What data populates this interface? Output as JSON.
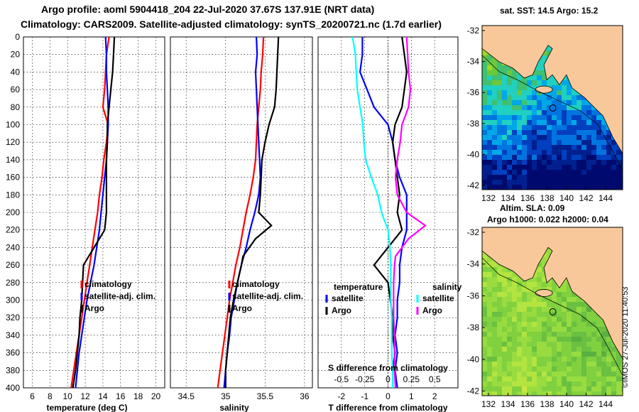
{
  "header": {
    "line1": "Argo profile: aoml 5904418_204 22-Jul-2020 37.67S 137.91E (NRT data)",
    "line2": "Climatology: CARS2009. Satellite-adjusted climatology: synTS_20200721.nc (1.7d earlier)"
  },
  "maps": {
    "sst_title": "sat. SST: 14.5 Argo: 15.2",
    "sla_title1": "Altim. SLA: 0.09",
    "sla_title2": "Argo h1000: 0.022 h2000: 0.04",
    "lon_ticks": [
      "132",
      "134",
      "136",
      "138",
      "140",
      "142",
      "144"
    ],
    "lat_ticks": [
      "-32",
      "-34",
      "-36",
      "-38",
      "-40",
      "-42"
    ],
    "credit": "©IMOS 27-Jul-2020 11:40:53"
  },
  "colors": {
    "climatology": "#ff0000",
    "satellite": "#0000ff",
    "argo": "#000000",
    "sal_satellite": "#00ffff",
    "sal_argo": "#ff00ff",
    "land": "#f9c89a"
  },
  "chart_data": [
    {
      "type": "line",
      "xlabel": "temperature (deg C)",
      "ylabel": "",
      "xlim": [
        5,
        21
      ],
      "ylim": [
        400,
        0
      ],
      "x_ticks": [
        6,
        8,
        10,
        12,
        14,
        16,
        18,
        20
      ],
      "y_ticks": [
        0,
        20,
        40,
        60,
        80,
        100,
        120,
        140,
        160,
        180,
        200,
        220,
        240,
        260,
        280,
        300,
        320,
        340,
        360,
        380,
        400
      ],
      "legend": [
        "climatology",
        "satellite-adj. clim.",
        "Argo"
      ],
      "series": [
        {
          "name": "climatology",
          "depth": [
            0,
            20,
            40,
            60,
            80,
            100,
            120,
            140,
            160,
            180,
            200,
            220,
            240,
            260,
            280,
            300,
            320,
            340,
            360,
            380,
            400
          ],
          "values": [
            14.7,
            14.4,
            14.3,
            14.2,
            14.0,
            14.6,
            14.4,
            14.1,
            13.9,
            13.6,
            13.4,
            13.1,
            12.8,
            12.5,
            12.2,
            11.9,
            11.6,
            11.3,
            11.0,
            10.7,
            10.4
          ]
        },
        {
          "name": "satellite-adj. clim.",
          "depth": [
            0,
            20,
            40,
            60,
            80,
            100,
            120,
            140,
            160,
            180,
            200,
            220,
            240,
            260,
            280,
            300,
            320,
            340,
            360,
            380,
            400
          ],
          "values": [
            14.3,
            14.4,
            14.4,
            14.5,
            14.6,
            14.6,
            14.5,
            14.4,
            14.2,
            14.0,
            13.8,
            13.6,
            13.3,
            13.0,
            12.6,
            12.2,
            11.9,
            11.6,
            11.3,
            11.1,
            10.9
          ]
        },
        {
          "name": "Argo",
          "depth": [
            0,
            20,
            40,
            60,
            80,
            100,
            120,
            140,
            160,
            180,
            200,
            220,
            240,
            250,
            260,
            280,
            300,
            320,
            340,
            360,
            380,
            400
          ],
          "values": [
            15.3,
            15.2,
            15.1,
            14.9,
            14.7,
            14.5,
            14.5,
            14.4,
            14.4,
            14.4,
            14.4,
            14.2,
            13.0,
            12.4,
            11.8,
            11.7,
            11.6,
            11.4,
            11.3,
            11.1,
            10.9,
            10.6
          ]
        }
      ]
    },
    {
      "type": "line",
      "xlabel": "salinity",
      "ylabel": "",
      "xlim": [
        34.3,
        36.1
      ],
      "ylim": [
        400,
        0
      ],
      "x_ticks": [
        34.5,
        35,
        35.5,
        36
      ],
      "x_tick_labels": [
        "34.5",
        "35",
        "35.5",
        "36"
      ],
      "legend": [
        "climatology",
        "satellite-adj. clim.",
        "Argo"
      ],
      "series": [
        {
          "name": "climatology",
          "depth": [
            0,
            20,
            40,
            60,
            80,
            100,
            120,
            140,
            160,
            180,
            200,
            220,
            240,
            260,
            280,
            300,
            320,
            340,
            360,
            380,
            400
          ],
          "values": [
            35.48,
            35.47,
            35.45,
            35.44,
            35.42,
            35.4,
            35.39,
            35.38,
            35.35,
            35.31,
            35.26,
            35.22,
            35.18,
            35.13,
            35.09,
            35.05,
            35.02,
            34.99,
            34.96,
            34.93,
            34.9
          ]
        },
        {
          "name": "satellite-adj. clim.",
          "depth": [
            0,
            20,
            40,
            60,
            80,
            100,
            120,
            140,
            160,
            180,
            200,
            220,
            240,
            260,
            280,
            300,
            320,
            340,
            360,
            380,
            400
          ],
          "values": [
            35.39,
            35.4,
            35.38,
            35.39,
            35.4,
            35.41,
            35.42,
            35.43,
            35.44,
            35.42,
            35.37,
            35.31,
            35.26,
            35.2,
            35.15,
            35.11,
            35.07,
            35.05,
            35.02,
            35.0,
            34.98
          ]
        },
        {
          "name": "Argo",
          "depth": [
            0,
            20,
            40,
            60,
            80,
            100,
            120,
            140,
            160,
            180,
            200,
            215,
            230,
            250,
            260,
            280,
            300,
            320,
            340,
            360,
            380,
            400
          ],
          "values": [
            35.67,
            35.66,
            35.65,
            35.64,
            35.62,
            35.55,
            35.5,
            35.46,
            35.45,
            35.44,
            35.42,
            35.58,
            35.38,
            35.22,
            35.2,
            35.15,
            35.1,
            35.06,
            35.04,
            35.02,
            35.0,
            35.0
          ]
        }
      ]
    },
    {
      "type": "line",
      "xlabel": "T difference from climatology",
      "xlabel_top": "S difference from climatology",
      "xlim": [
        -3,
        3
      ],
      "ylim": [
        400,
        0
      ],
      "x_ticks": [
        -2,
        -1,
        0,
        1,
        2
      ],
      "x_ticks_top": [
        "-0.5",
        "-0.25",
        "0",
        "0.25",
        "0.5"
      ],
      "legend_groups": {
        "temperature": "temperature",
        "salinity": "salinity",
        "satellite": "satellite",
        "argo": "Argo"
      },
      "series": [
        {
          "name": "temperature satellite",
          "depth": [
            0,
            20,
            40,
            60,
            80,
            100,
            120,
            140,
            160,
            180,
            200,
            220,
            240,
            260,
            280,
            300,
            320,
            340,
            360,
            380,
            400
          ],
          "values": [
            -1.1,
            -1.1,
            -1.2,
            -0.9,
            -0.6,
            0.0,
            0.2,
            0.3,
            0.5,
            0.8,
            0.8,
            0.8,
            0.6,
            0.5,
            0.5,
            0.4,
            0.4,
            0.3,
            0.4,
            0.3,
            0.4
          ]
        },
        {
          "name": "temperature Argo",
          "depth": [
            0,
            20,
            40,
            60,
            80,
            100,
            120,
            140,
            160,
            180,
            200,
            220,
            240,
            260,
            280,
            300,
            320,
            340,
            360,
            380,
            400
          ],
          "values": [
            0.6,
            0.7,
            0.8,
            0.7,
            0.6,
            0.3,
            0.2,
            0.3,
            0.4,
            0.5,
            0.4,
            0.6,
            0.0,
            -0.6,
            0.0,
            0.1,
            0.2,
            0.2,
            0.3,
            0.2,
            0.2
          ]
        },
        {
          "name": "salinity satellite",
          "depth": [
            0,
            20,
            40,
            60,
            80,
            100,
            120,
            140,
            160,
            180,
            200,
            220,
            240,
            260,
            280,
            300,
            320,
            340,
            360,
            380,
            400
          ],
          "values": [
            -0.38,
            -0.35,
            -0.34,
            -0.33,
            -0.3,
            -0.27,
            -0.26,
            -0.24,
            -0.18,
            -0.11,
            -0.07,
            0.0,
            0.02,
            0.03,
            0.03,
            0.03,
            0.04,
            0.04,
            0.04,
            0.05,
            0.05
          ]
        },
        {
          "name": "salinity Argo",
          "depth": [
            0,
            20,
            40,
            60,
            80,
            100,
            120,
            140,
            160,
            180,
            200,
            215,
            230,
            250,
            260,
            280,
            300,
            320,
            340,
            360,
            380,
            400
          ],
          "values": [
            0.2,
            0.21,
            0.22,
            0.24,
            0.22,
            0.15,
            0.13,
            0.1,
            0.08,
            0.1,
            0.2,
            0.4,
            0.22,
            0.08,
            0.07,
            0.06,
            0.06,
            0.06,
            0.07,
            0.07,
            0.07,
            0.08
          ]
        }
      ]
    }
  ]
}
